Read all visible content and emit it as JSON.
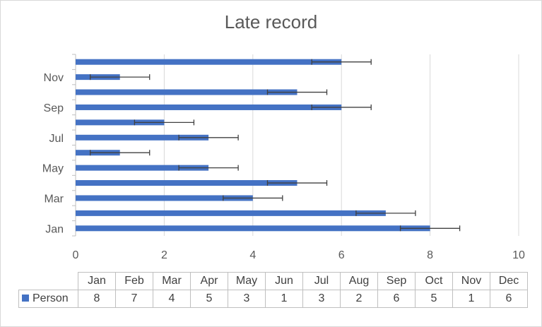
{
  "chart_data": {
    "type": "bar",
    "orientation": "horizontal",
    "title": "Late record",
    "categories": [
      "Jan",
      "Feb",
      "Mar",
      "Apr",
      "May",
      "Jun",
      "Jul",
      "Aug",
      "Sep",
      "Oct",
      "Nov",
      "Dec"
    ],
    "axis_tick_labels_shown": [
      "Jan",
      "Mar",
      "May",
      "Jul",
      "Sep",
      "Nov"
    ],
    "series": [
      {
        "name": "Person",
        "values": [
          8,
          7,
          4,
          5,
          3,
          1,
          3,
          2,
          6,
          5,
          1,
          6
        ],
        "color": "#4472c4"
      }
    ],
    "error_bars": {
      "minus": 0.67,
      "plus": 0.67
    },
    "xlim": [
      0,
      10
    ],
    "xticks": [
      0,
      2,
      4,
      6,
      8,
      10
    ],
    "grid": true,
    "legend": "data-table-bottom",
    "data_table": true
  }
}
